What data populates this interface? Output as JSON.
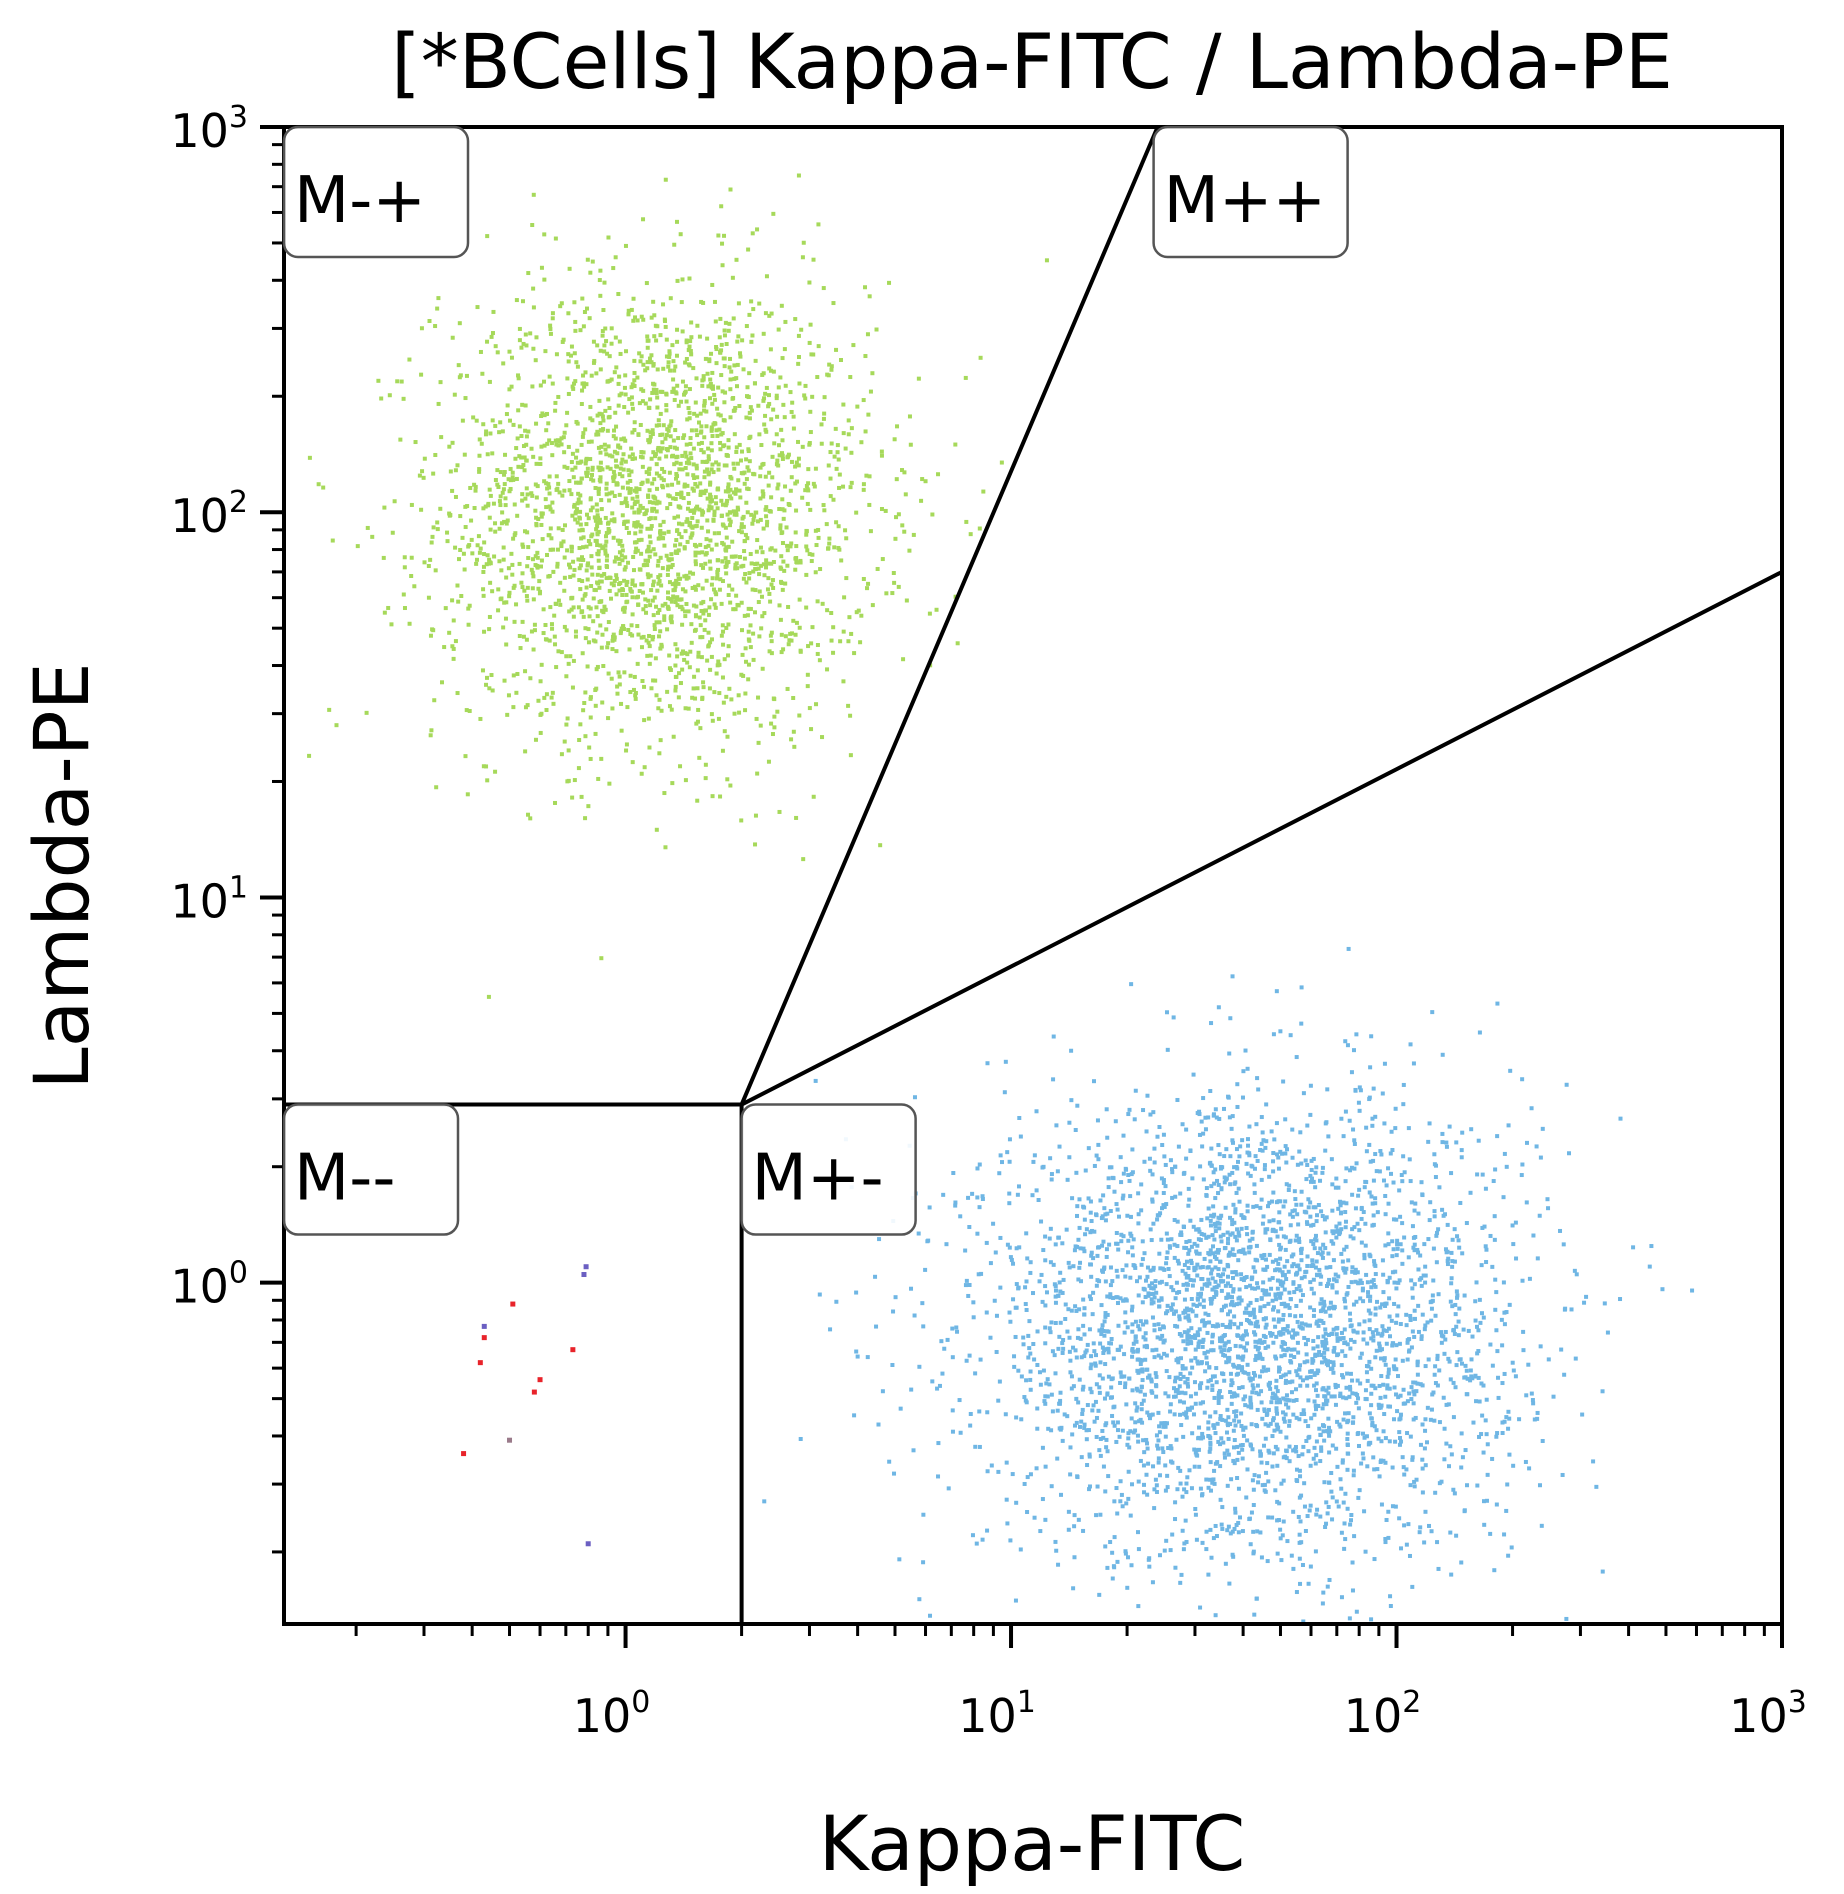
{
  "chart_data": {
    "type": "scatter",
    "title": "[*BCells] Kappa-FITC / Lambda-PE",
    "xlabel": "Kappa-FITC",
    "ylabel": "Lambda-PE",
    "xscale": "log",
    "yscale": "log",
    "xlim": [
      0.13,
      1000
    ],
    "ylim": [
      0.13,
      1000
    ],
    "x_ticks": [
      {
        "value": 1,
        "base": "10",
        "exp": "0"
      },
      {
        "value": 10,
        "base": "10",
        "exp": "1"
      },
      {
        "value": 100,
        "base": "10",
        "exp": "2"
      },
      {
        "value": 1000,
        "base": "10",
        "exp": "3"
      }
    ],
    "y_ticks": [
      {
        "value": 1,
        "base": "10",
        "exp": "0"
      },
      {
        "value": 10,
        "base": "10",
        "exp": "1"
      },
      {
        "value": 100,
        "base": "10",
        "exp": "2"
      },
      {
        "value": 1000,
        "base": "10",
        "exp": "3"
      }
    ],
    "gates": {
      "center": [
        2.0,
        2.9
      ],
      "upper_divider_end": [
        24,
        1000
      ],
      "lower_divider_end": [
        1000,
        70
      ],
      "labels": [
        "M-+",
        "M++",
        "M--",
        "M+-"
      ]
    },
    "series": [
      {
        "color": "#a6d95a",
        "center": [
          1.2,
          100
        ],
        "spread_decades": [
          0.28,
          0.3
        ],
        "count": 2600
      },
      {
        "color": "#6fb6e4",
        "center": [
          42,
          0.75
        ],
        "spread_decades": [
          0.35,
          0.3
        ],
        "count": 3400
      },
      {
        "color": "#e8232a",
        "points": [
          [
            0.42,
            0.62
          ],
          [
            0.43,
            0.72
          ],
          [
            0.51,
            0.88
          ],
          [
            0.58,
            0.52
          ],
          [
            0.6,
            0.56
          ],
          [
            0.73,
            0.67
          ],
          [
            0.38,
            0.36
          ]
        ]
      },
      {
        "color": "#6b5fc2",
        "points": [
          [
            0.43,
            0.77
          ],
          [
            0.78,
            1.05
          ],
          [
            0.79,
            1.1
          ],
          [
            0.8,
            0.21
          ]
        ]
      },
      {
        "color": "#9a7a8a",
        "points": [
          [
            0.5,
            0.39
          ]
        ]
      }
    ]
  }
}
